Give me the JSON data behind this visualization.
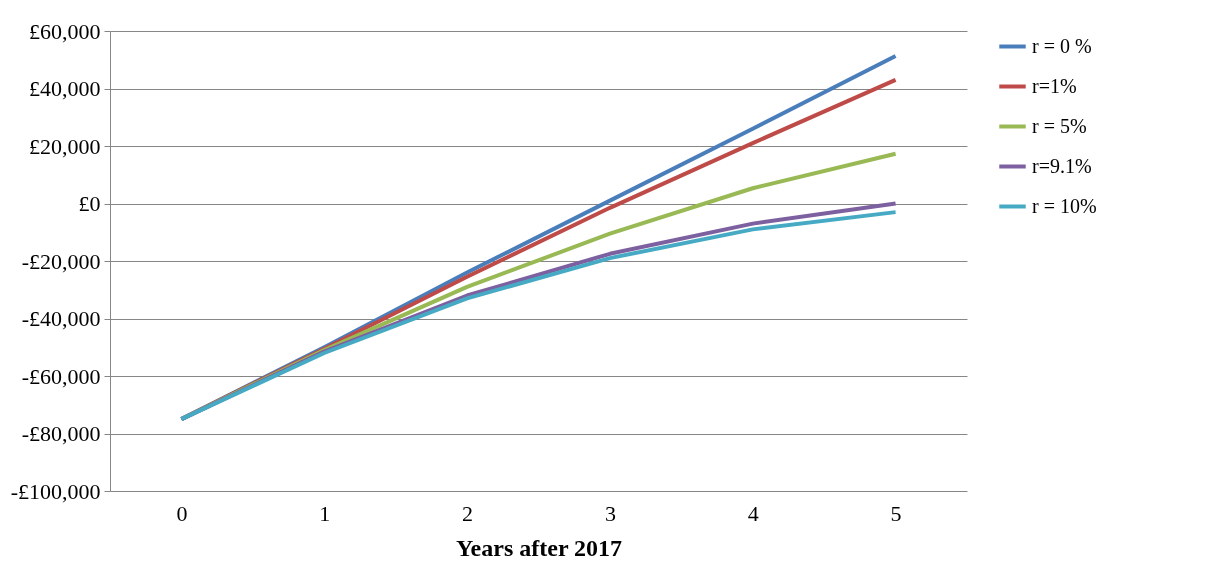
{
  "chart_data": {
    "type": "line",
    "xlabel": "Years after 2017",
    "categories": [
      "0",
      "1",
      "2",
      "3",
      "4",
      "5"
    ],
    "series": [
      {
        "name": "r = 0 %",
        "color": "#4a7ebb",
        "values": [
          -75000,
          -50000,
          -24000,
          1000,
          26000,
          51300
        ]
      },
      {
        "name": "r=1%",
        "color": "#be4b48",
        "values": [
          -75000,
          -50500,
          -25500,
          -1500,
          21000,
          43000
        ]
      },
      {
        "name": "r = 5%",
        "color": "#98b954",
        "values": [
          -75000,
          -51000,
          -29000,
          -10500,
          5300,
          17300
        ]
      },
      {
        "name": "r=9.1%",
        "color": "#7d60a0",
        "values": [
          -75000,
          -51500,
          -32000,
          -17500,
          -7000,
          0
        ]
      },
      {
        "name": "r = 10%",
        "color": "#46aac5",
        "values": [
          -75000,
          -52000,
          -33000,
          -19000,
          -9000,
          -3000
        ]
      }
    ],
    "ylim": [
      -100000,
      60000
    ],
    "yticks": [
      {
        "value": -100000,
        "label": "-£100,000"
      },
      {
        "value": -80000,
        "label": "-£80,000"
      },
      {
        "value": -60000,
        "label": "-£60,000"
      },
      {
        "value": -40000,
        "label": "-£40,000"
      },
      {
        "value": -20000,
        "label": "-£20,000"
      },
      {
        "value": 0,
        "label": "£0"
      },
      {
        "value": 20000,
        "label": "£20,000"
      },
      {
        "value": 40000,
        "label": "£40,000"
      },
      {
        "value": 60000,
        "label": "£60,000"
      }
    ],
    "grid": "y",
    "legend": "right",
    "marker": "none",
    "line_style": "solid"
  }
}
